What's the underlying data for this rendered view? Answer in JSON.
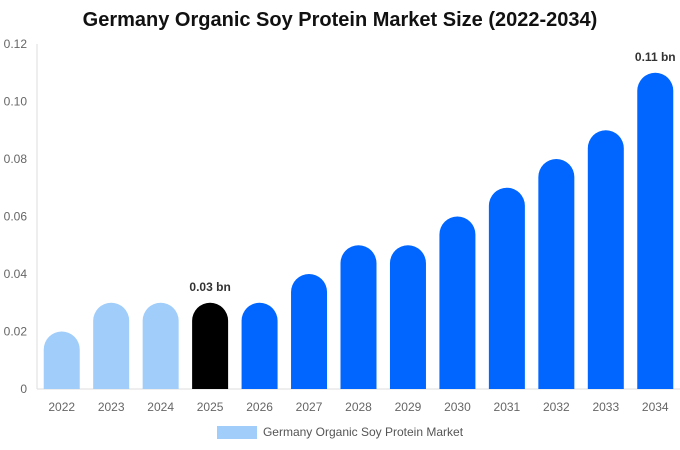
{
  "chart_data": {
    "type": "bar",
    "title": "Germany Organic Soy Protein Market Size (2022-2034)",
    "categories": [
      "2022",
      "2023",
      "2024",
      "2025",
      "2026",
      "2027",
      "2028",
      "2029",
      "2030",
      "2031",
      "2032",
      "2033",
      "2034"
    ],
    "series": [
      {
        "name": "Germany Organic Soy Protein Market",
        "values": [
          0.02,
          0.03,
          0.03,
          0.03,
          0.03,
          0.04,
          0.05,
          0.05,
          0.06,
          0.07,
          0.08,
          0.09,
          0.11
        ]
      }
    ],
    "bar_colors": [
      "#a0cdfa",
      "#a0cdfa",
      "#a0cdfa",
      "#000000",
      "#0066ff",
      "#0066ff",
      "#0066ff",
      "#0066ff",
      "#0066ff",
      "#0066ff",
      "#0066ff",
      "#0066ff",
      "#0066ff"
    ],
    "legend_color": "#a0cdfa",
    "data_labels": [
      {
        "category": "2025",
        "text": "0.03 bn"
      },
      {
        "category": "2034",
        "text": "0.11 bn"
      }
    ],
    "yticks": [
      "0",
      "0.02",
      "0.04",
      "0.06",
      "0.08",
      "0.10",
      "0.12"
    ],
    "ylim": [
      0,
      0.12
    ],
    "grid": false,
    "legend_position": "bottom"
  }
}
